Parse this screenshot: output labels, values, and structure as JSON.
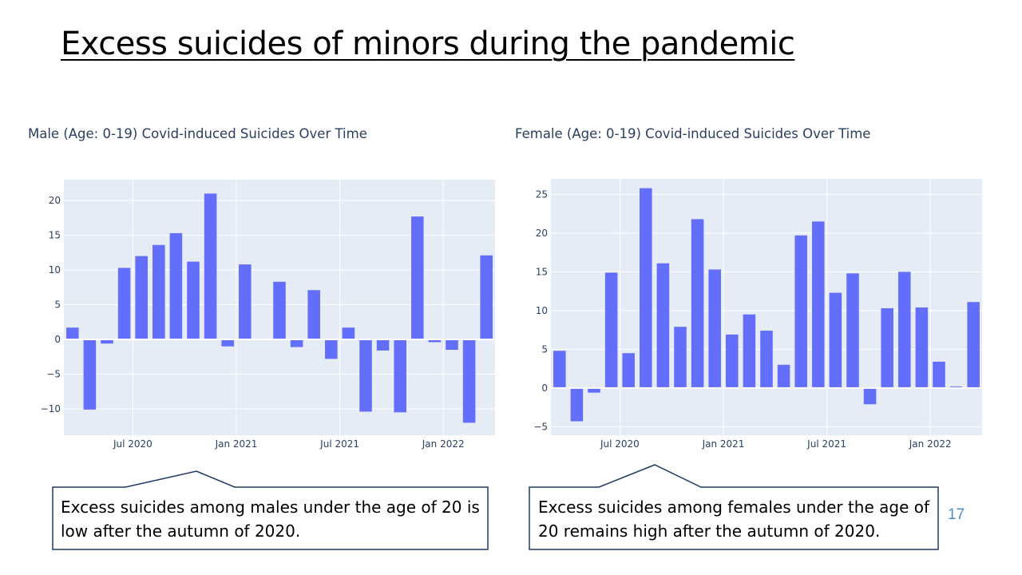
{
  "slide": {
    "title": "Excess suicides of minors during the pandemic",
    "page_number": "17"
  },
  "callouts": {
    "male": "Excess suicides among males under the age of 20 is low after the autumn of 2020.",
    "female": "Excess suicides among females under the age of 20 remains high after the autumn of 2020."
  },
  "chart_data": [
    {
      "type": "bar",
      "title": "Male (Age: 0-19) Covid-induced Suicides Over Time",
      "color": "#636efa",
      "plot_bg": "#e5ecf6",
      "grid": true,
      "x_ticks": [
        "Jul 2020",
        "Jan 2021",
        "Jul 2021",
        "Jan 2022"
      ],
      "x_tick_index": [
        4,
        10,
        16,
        22
      ],
      "y_ticks": [
        -10,
        -5,
        0,
        5,
        10,
        15,
        20
      ],
      "y_tick_labels": [
        "−10",
        "−5",
        "0",
        "5",
        "10",
        "15",
        "20"
      ],
      "ylim": [
        -13.8,
        23
      ],
      "categories": [
        "2020-03",
        "2020-04",
        "2020-05",
        "2020-06",
        "2020-07",
        "2020-08",
        "2020-09",
        "2020-10",
        "2020-11",
        "2020-12",
        "2021-01",
        "2021-02",
        "2021-03",
        "2021-04",
        "2021-05",
        "2021-06",
        "2021-07",
        "2021-08",
        "2021-09",
        "2021-10",
        "2021-11",
        "2021-12",
        "2022-01",
        "2022-02",
        "2022-03"
      ],
      "values": [
        1.7,
        -10.1,
        -0.6,
        10.3,
        12.0,
        13.6,
        15.3,
        11.2,
        21.0,
        -1.0,
        10.8,
        0.0,
        8.3,
        -1.1,
        7.1,
        -2.8,
        1.7,
        -10.4,
        -1.6,
        -10.5,
        17.7,
        -0.4,
        -1.5,
        -12.0,
        12.1
      ]
    },
    {
      "type": "bar",
      "title": "Female (Age: 0-19) Covid-induced Suicides Over Time",
      "color": "#636efa",
      "plot_bg": "#e5ecf6",
      "grid": true,
      "x_ticks": [
        "Jul 2020",
        "Jan 2021",
        "Jul 2021",
        "Jan 2022"
      ],
      "x_tick_index": [
        4,
        10,
        16,
        22
      ],
      "y_ticks": [
        -5,
        0,
        5,
        10,
        15,
        20,
        25
      ],
      "y_tick_labels": [
        "−5",
        "0",
        "5",
        "10",
        "15",
        "20",
        "25"
      ],
      "ylim": [
        -6.1,
        27
      ],
      "categories": [
        "2020-03",
        "2020-04",
        "2020-05",
        "2020-06",
        "2020-07",
        "2020-08",
        "2020-09",
        "2020-10",
        "2020-11",
        "2020-12",
        "2021-01",
        "2021-02",
        "2021-03",
        "2021-04",
        "2021-05",
        "2021-06",
        "2021-07",
        "2021-08",
        "2021-09",
        "2021-10",
        "2021-11",
        "2021-12",
        "2022-01",
        "2022-02",
        "2022-03"
      ],
      "values": [
        4.8,
        -4.3,
        -0.6,
        14.9,
        4.5,
        25.8,
        16.1,
        7.9,
        21.8,
        15.3,
        6.9,
        9.5,
        7.4,
        3.0,
        19.7,
        21.5,
        12.3,
        14.8,
        -2.1,
        10.3,
        15.0,
        10.4,
        3.4,
        0.2,
        11.1
      ]
    }
  ]
}
